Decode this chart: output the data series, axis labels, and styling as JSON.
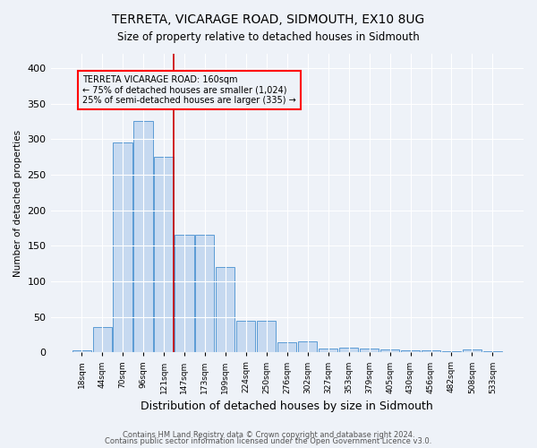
{
  "title": "TERRETA, VICARAGE ROAD, SIDMOUTH, EX10 8UG",
  "subtitle": "Size of property relative to detached houses in Sidmouth",
  "xlabel": "Distribution of detached houses by size in Sidmouth",
  "ylabel": "Number of detached properties",
  "bar_color": "#c6d9f0",
  "bar_edge_color": "#5b9bd5",
  "categories": [
    "18sqm",
    "44sqm",
    "70sqm",
    "96sqm",
    "121sqm",
    "147sqm",
    "173sqm",
    "199sqm",
    "224sqm",
    "250sqm",
    "276sqm",
    "302sqm",
    "327sqm",
    "353sqm",
    "379sqm",
    "405sqm",
    "430sqm",
    "456sqm",
    "482sqm",
    "508sqm",
    "533sqm"
  ],
  "values": [
    3,
    35,
    295,
    325,
    275,
    165,
    165,
    120,
    44,
    45,
    14,
    16,
    5,
    7,
    6,
    4,
    3,
    3,
    1,
    4,
    1
  ],
  "vline_x": 4.5,
  "vline_color": "#cc0000",
  "annotation_text": "TERRETA VICARAGE ROAD: 160sqm\n← 75% of detached houses are smaller (1,024)\n25% of semi-detached houses are larger (335) →",
  "footer1": "Contains HM Land Registry data © Crown copyright and database right 2024.",
  "footer2": "Contains public sector information licensed under the Open Government Licence v3.0.",
  "ylim": [
    0,
    420
  ],
  "background_color": "#eef2f8"
}
